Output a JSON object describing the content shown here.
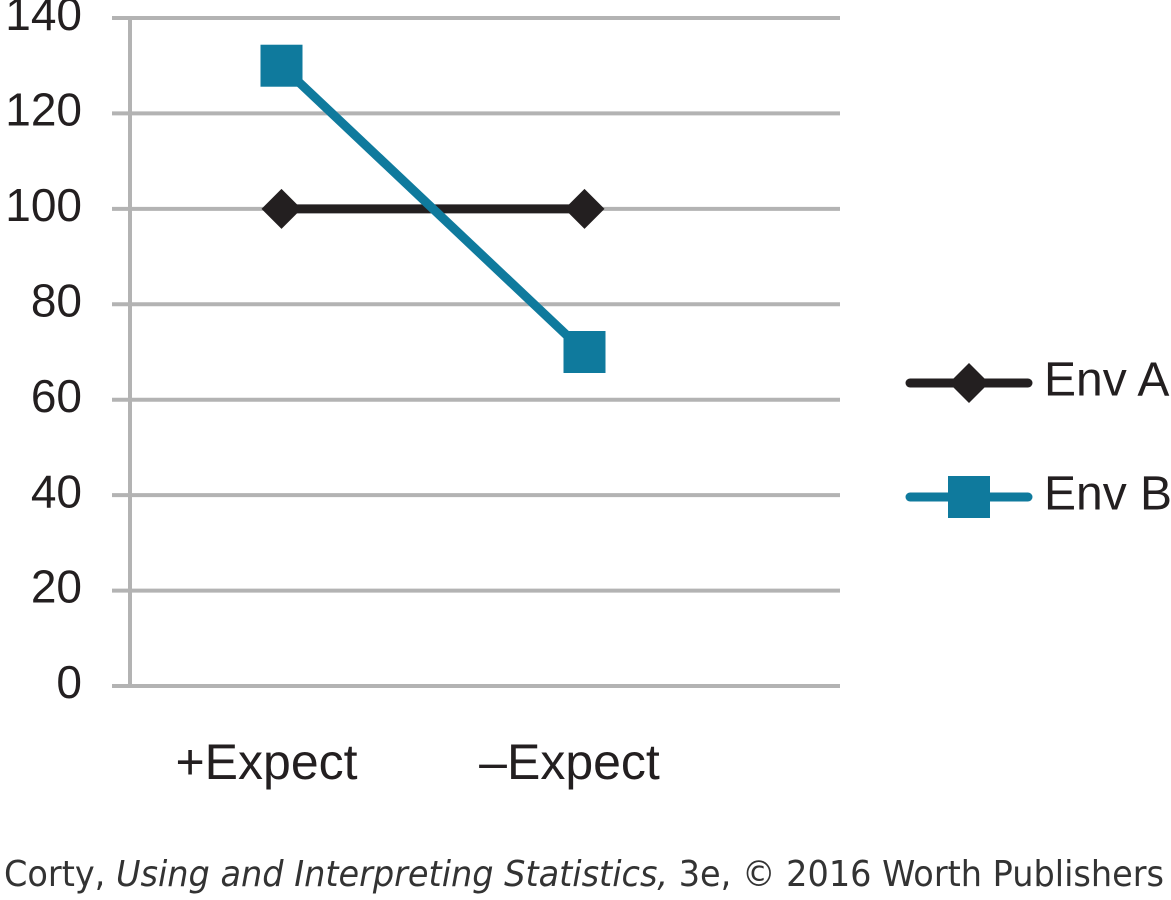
{
  "chart_data": {
    "type": "line",
    "categories": [
      "+Expect",
      "–Expect"
    ],
    "series": [
      {
        "name": "Env A",
        "color": "#231f20",
        "marker": "diamond",
        "values": [
          100,
          100
        ]
      },
      {
        "name": "Env B",
        "color": "#0f7a9d",
        "marker": "square",
        "values": [
          130,
          70
        ]
      }
    ],
    "ylim": [
      0,
      140
    ],
    "yticks": [
      0,
      20,
      40,
      60,
      80,
      100,
      120,
      140
    ],
    "grid": true,
    "legend": "right",
    "source": {
      "author": "Corty,",
      "book": "Using and Interpreting Statistics,",
      "rest": "3e, © 2016 Worth Publishers"
    }
  }
}
